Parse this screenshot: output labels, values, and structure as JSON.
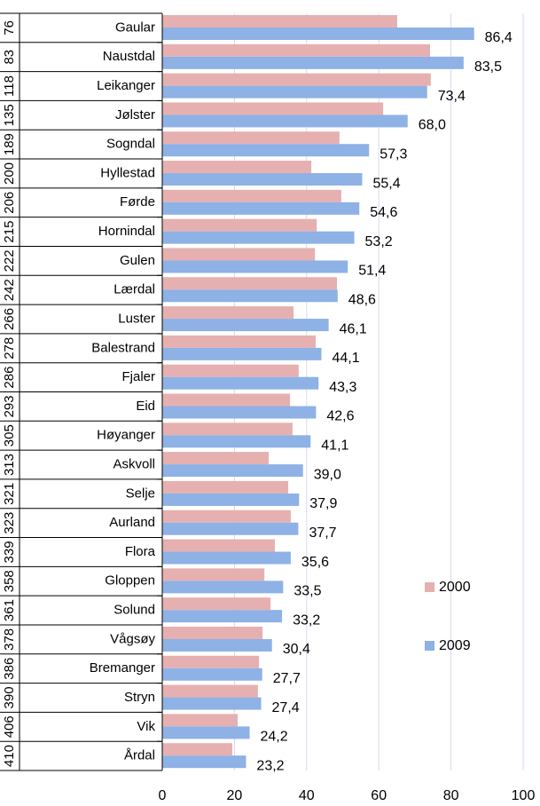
{
  "chart_data": {
    "type": "bar",
    "orientation": "horizontal",
    "categories": [
      "Gaular",
      "Naustdal",
      "Leikanger",
      "Jølster",
      "Sogndal",
      "Hyllestad",
      "Førde",
      "Hornindal",
      "Gulen",
      "Lærdal",
      "Luster",
      "Balestrand",
      "Fjaler",
      "Eid",
      "Høyanger",
      "Askvoll",
      "Selje",
      "Aurland",
      "Flora",
      "Gloppen",
      "Solund",
      "Vågsøy",
      "Bremanger",
      "Stryn",
      "Vik",
      "Årdal"
    ],
    "ranks": [
      76,
      83,
      118,
      135,
      189,
      200,
      206,
      215,
      222,
      242,
      266,
      278,
      286,
      293,
      305,
      313,
      321,
      323,
      339,
      358,
      361,
      378,
      386,
      390,
      406,
      410
    ],
    "series": [
      {
        "name": "2000",
        "color": "#e6b0b0",
        "values": [
          65.1,
          74.2,
          74.4,
          61.2,
          49.1,
          41.3,
          49.6,
          42.8,
          42.3,
          48.4,
          36.4,
          42.5,
          37.8,
          35.4,
          36.1,
          29.5,
          34.9,
          35.6,
          31.2,
          28.3,
          30.0,
          27.8,
          26.8,
          26.5,
          20.9,
          19.4
        ]
      },
      {
        "name": "2009",
        "color": "#8eb1e6",
        "values": [
          86.4,
          83.5,
          73.4,
          68.0,
          57.3,
          55.4,
          54.6,
          53.2,
          51.4,
          48.6,
          46.1,
          44.1,
          43.3,
          42.6,
          41.1,
          39.0,
          37.9,
          37.7,
          35.6,
          33.5,
          33.2,
          30.4,
          27.7,
          27.4,
          24.2,
          23.2
        ],
        "value_labels": [
          "86,4",
          "83,5",
          "73,4",
          "68,0",
          "57,3",
          "55,4",
          "54,6",
          "53,2",
          "51,4",
          "48,6",
          "46,1",
          "44,1",
          "43,3",
          "42,6",
          "41,1",
          "39,0",
          "37,9",
          "37,7",
          "35,6",
          "33,5",
          "33,2",
          "30,4",
          "27,7",
          "27,4",
          "24,2",
          "23,2"
        ]
      }
    ],
    "xlim": [
      0,
      100
    ],
    "xticks": [
      0,
      20,
      40,
      60,
      80,
      100
    ],
    "grid": true,
    "legend": "right"
  }
}
